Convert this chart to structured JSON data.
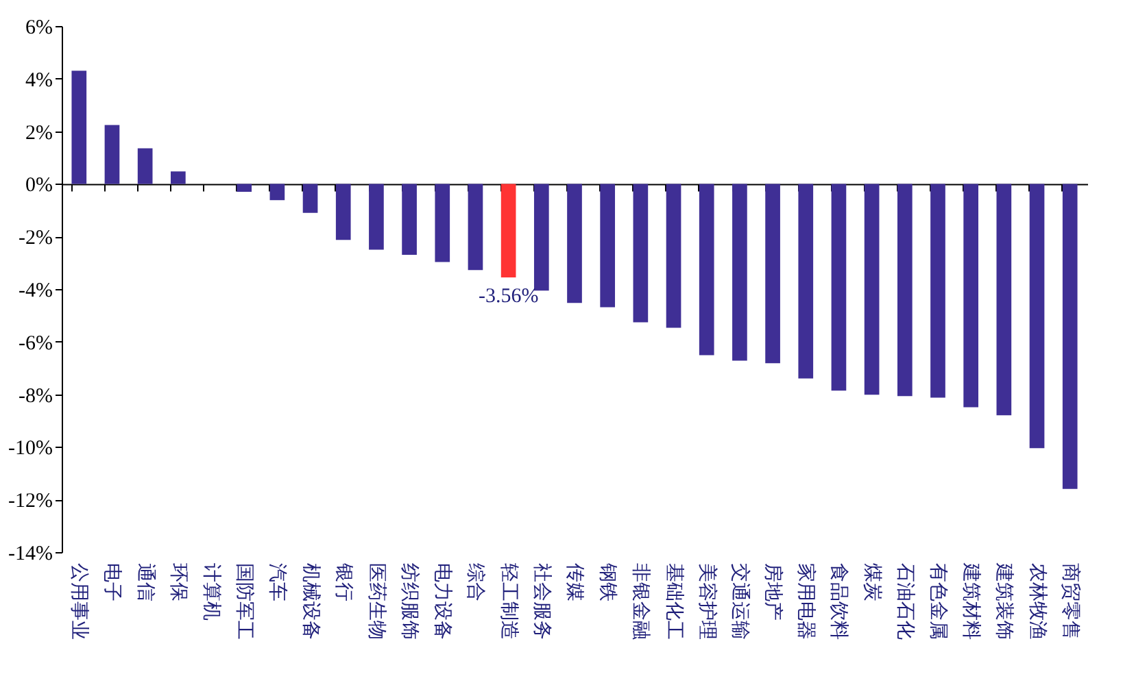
{
  "chart_data": {
    "type": "bar",
    "categories": [
      "公用事业",
      "电子",
      "通信",
      "环保",
      "计算机",
      "国防军工",
      "汽车",
      "机械设备",
      "银行",
      "医药生物",
      "纺织服饰",
      "电力设备",
      "综合",
      "轻工制造",
      "社会服务",
      "传媒",
      "钢铁",
      "非银金融",
      "基础化工",
      "美容护理",
      "交通运输",
      "房地产",
      "家用电器",
      "食品饮料",
      "煤炭",
      "石油石化",
      "有色金属",
      "建筑材料",
      "建筑装饰",
      "农林牧渔",
      "商贸零售"
    ],
    "values": [
      4.3,
      2.24,
      1.35,
      0.47,
      null,
      -0.3,
      -0.62,
      -1.1,
      -2.13,
      -2.5,
      -2.7,
      -2.97,
      -3.28,
      -3.56,
      -4.06,
      -4.53,
      -4.69,
      -5.26,
      -5.47,
      -6.51,
      -6.72,
      -6.82,
      -7.4,
      -7.86,
      -8.02,
      -8.07,
      -8.13,
      -8.49,
      -8.8,
      -10.05,
      -11.6
    ],
    "colors": [
      "#3f2f95",
      "#3f2f95",
      "#3f2f95",
      "#3f2f95",
      "#3f2f95",
      "#3f2f95",
      "#3f2f95",
      "#3f2f95",
      "#3f2f95",
      "#3f2f95",
      "#3f2f95",
      "#3f2f95",
      "#3f2f95",
      "#ff3333",
      "#3f2f95",
      "#3f2f95",
      "#3f2f95",
      "#3f2f95",
      "#3f2f95",
      "#3f2f95",
      "#3f2f95",
      "#3f2f95",
      "#3f2f95",
      "#3f2f95",
      "#3f2f95",
      "#3f2f95",
      "#3f2f95",
      "#3f2f95",
      "#3f2f95",
      "#3f2f95",
      "#3f2f95"
    ],
    "ylim": [
      -14,
      6
    ],
    "yticks": [
      {
        "value": 6,
        "label": "6%"
      },
      {
        "value": 4,
        "label": "4%"
      },
      {
        "value": 2,
        "label": "2%"
      },
      {
        "value": 0,
        "label": "0%"
      },
      {
        "value": -2,
        "label": "-2%"
      },
      {
        "value": -4,
        "label": "-4%"
      },
      {
        "value": -6,
        "label": "-6%"
      },
      {
        "value": -8,
        "label": "-8%"
      },
      {
        "value": -10,
        "label": "-10%"
      },
      {
        "value": -12,
        "label": "-12%"
      },
      {
        "value": -14,
        "label": "-14%"
      }
    ],
    "annotations": [
      {
        "text": "-3.56%",
        "x": "轻工制造",
        "y": -3.56
      }
    ]
  }
}
